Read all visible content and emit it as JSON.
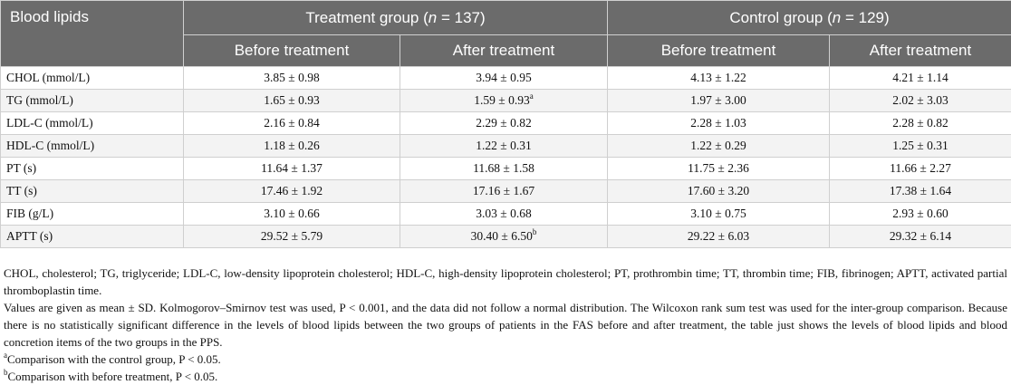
{
  "header": {
    "row_label": "Blood lipids",
    "treatment_group": "Treatment group (",
    "treatment_n": "n",
    "treatment_count": " = 137)",
    "control_group": "Control group (",
    "control_n": "n",
    "control_count": " = 129)",
    "before": "Before treatment",
    "after": "After treatment"
  },
  "rows": [
    {
      "label": "CHOL (mmol/L)",
      "t_before": "3.85 ± 0.98",
      "t_after": "3.94 ± 0.95",
      "t_after_sup": "",
      "c_before": "4.13 ± 1.22",
      "c_after": "4.21 ± 1.14"
    },
    {
      "label": "TG (mmol/L)",
      "t_before": "1.65 ± 0.93",
      "t_after": "1.59 ± 0.93",
      "t_after_sup": "a",
      "c_before": "1.97 ± 3.00",
      "c_after": "2.02 ± 3.03"
    },
    {
      "label": "LDL-C (mmol/L)",
      "t_before": "2.16 ± 0.84",
      "t_after": "2.29 ± 0.82",
      "t_after_sup": "",
      "c_before": "2.28 ± 1.03",
      "c_after": "2.28 ± 0.82"
    },
    {
      "label": "HDL-C (mmol/L)",
      "t_before": "1.18 ± 0.26",
      "t_after": "1.22 ± 0.31",
      "t_after_sup": "",
      "c_before": "1.22 ± 0.29",
      "c_after": "1.25 ± 0.31"
    },
    {
      "label": "PT (s)",
      "t_before": "11.64 ± 1.37",
      "t_after": "11.68 ± 1.58",
      "t_after_sup": "",
      "c_before": "11.75 ± 2.36",
      "c_after": "11.66 ± 2.27"
    },
    {
      "label": "TT (s)",
      "t_before": "17.46 ± 1.92",
      "t_after": "17.16 ± 1.67",
      "t_after_sup": "",
      "c_before": "17.60 ± 3.20",
      "c_after": "17.38 ± 1.64"
    },
    {
      "label": "FIB (g/L)",
      "t_before": "3.10 ± 0.66",
      "t_after": "3.03 ± 0.68",
      "t_after_sup": "",
      "c_before": "3.10 ± 0.75",
      "c_after": "2.93 ± 0.60"
    },
    {
      "label": "APTT (s)",
      "t_before": "29.52 ± 5.79",
      "t_after": "30.40 ± 6.50",
      "t_after_sup": "b",
      "c_before": "29.22 ± 6.03",
      "c_after": "29.32 ± 6.14"
    }
  ],
  "notes": {
    "abbreviations": "CHOL, cholesterol; TG, triglyceride; LDL-C, low-density lipoprotein cholesterol; HDL-C, high-density lipoprotein cholesterol; PT, prothrombin time; TT, thrombin time; FIB, fibrinogen; APTT, activated partial thromboplastin time.",
    "values": "Values are given as mean ± SD. Kolmogorov–Smirnov test was used, P < 0.001, and the data did not follow a normal distribution. The Wilcoxon rank sum test was used for the inter-group comparison. Because there is no statistically significant difference in the levels of blood lipids between the two groups of patients in the FAS before and after treatment, the table just shows the levels of blood lipids and blood concretion items of the two groups in the PPS.",
    "a_mark": "a",
    "a_text": "Comparison with the control group, P < 0.05.",
    "b_mark": "b",
    "b_text": "Comparison with before treatment, P < 0.05."
  }
}
